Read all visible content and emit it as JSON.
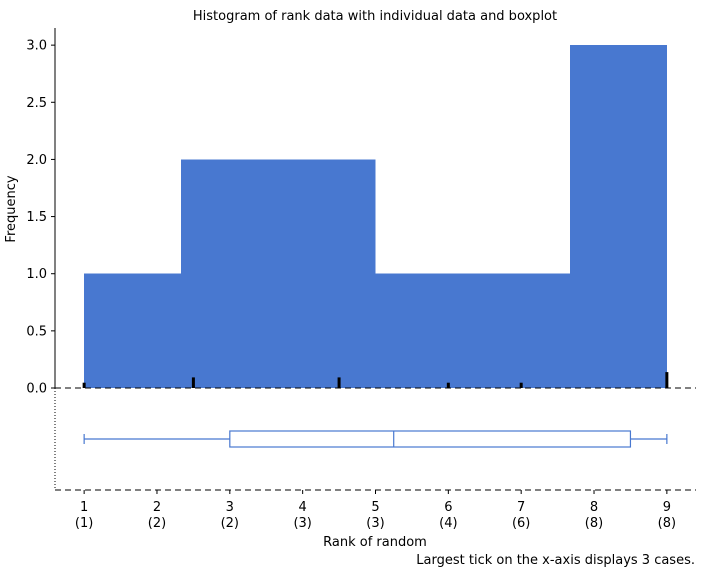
{
  "chart_data": {
    "type": "bar",
    "title": "Histogram of rank data with individual data and boxplot",
    "xlabel": "Rank of random",
    "ylabel": "Frequency",
    "note": "Largest tick on the x-axis displays 3 cases.",
    "ylim": [
      0,
      3.15
    ],
    "xlim": [
      0.6,
      9.4
    ],
    "y_ticks": [
      0.0,
      0.5,
      1.0,
      1.5,
      2.0,
      2.5,
      3.0
    ],
    "x_ticks": [
      {
        "value": 1,
        "label": "1",
        "sublabel": "(1)"
      },
      {
        "value": 2,
        "label": "2",
        "sublabel": "(2)"
      },
      {
        "value": 3,
        "label": "3",
        "sublabel": "(2)"
      },
      {
        "value": 4,
        "label": "4",
        "sublabel": "(3)"
      },
      {
        "value": 5,
        "label": "5",
        "sublabel": "(3)"
      },
      {
        "value": 6,
        "label": "6",
        "sublabel": "(4)"
      },
      {
        "value": 7,
        "label": "7",
        "sublabel": "(6)"
      },
      {
        "value": 8,
        "label": "8",
        "sublabel": "(8)"
      },
      {
        "value": 9,
        "label": "9",
        "sublabel": "(8)"
      }
    ],
    "bins": [
      {
        "start": 1.0,
        "end": 2.333,
        "count": 1
      },
      {
        "start": 2.333,
        "end": 3.667,
        "count": 2
      },
      {
        "start": 3.667,
        "end": 5.0,
        "count": 2
      },
      {
        "start": 5.0,
        "end": 6.333,
        "count": 1
      },
      {
        "start": 6.333,
        "end": 7.667,
        "count": 1
      },
      {
        "start": 7.667,
        "end": 9.0,
        "count": 3
      }
    ],
    "rug": [
      {
        "x": 1.0,
        "cases": 1
      },
      {
        "x": 2.5,
        "cases": 2
      },
      {
        "x": 4.5,
        "cases": 2
      },
      {
        "x": 6.0,
        "cases": 1
      },
      {
        "x": 7.0,
        "cases": 1
      },
      {
        "x": 9.0,
        "cases": 3
      }
    ],
    "boxplot": {
      "min": 1.0,
      "q1": 3.0,
      "median": 5.25,
      "q3": 8.5,
      "max": 9.0
    },
    "colors": {
      "bar": "#4878d0",
      "box": "#4878d0",
      "axis": "#000000"
    }
  }
}
